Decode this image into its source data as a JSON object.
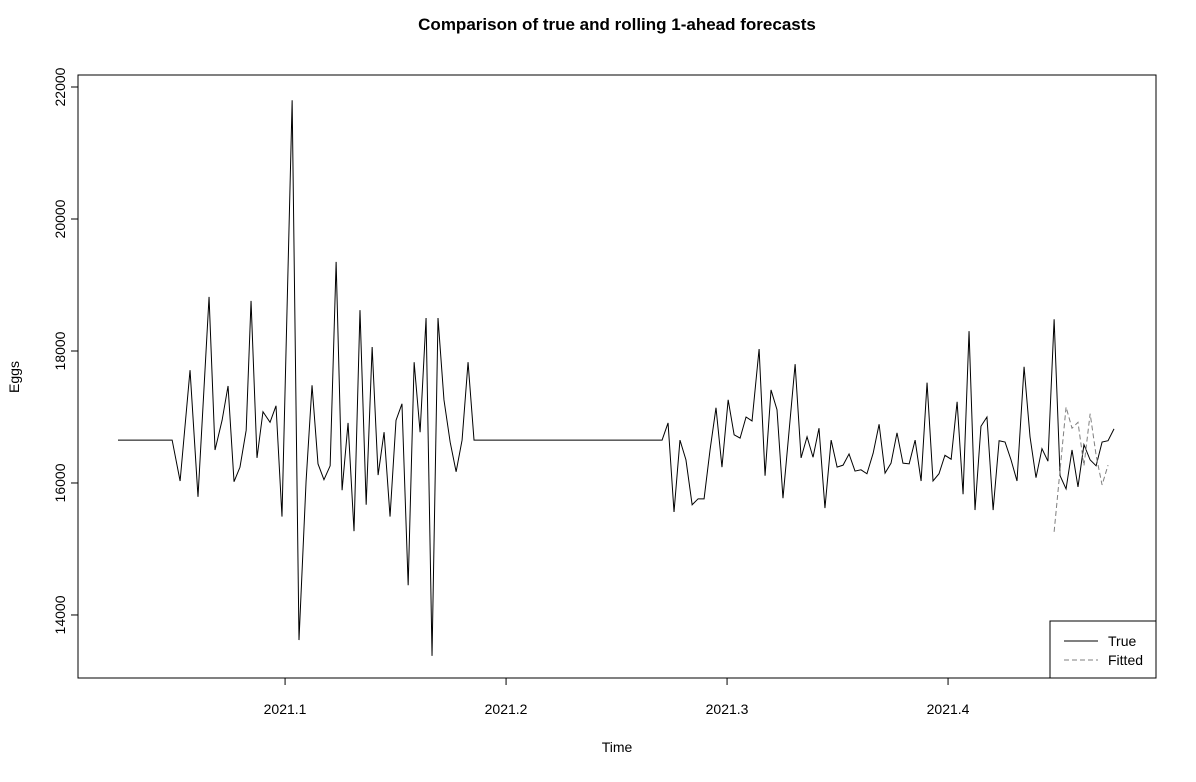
{
  "chart_data": {
    "type": "line",
    "title": "Comparison of true and rolling 1-ahead forecasts",
    "x_label": "Time",
    "y_label": "Eggs",
    "xlim": [
      2021.0063,
      2021.4941
    ],
    "ylim": [
      13045,
      22182
    ],
    "xticks": [
      2021.1,
      2021.2,
      2021.3,
      2021.4
    ],
    "yticks": [
      14000,
      16000,
      18000,
      20000,
      22000
    ],
    "legend_position": "bottomright",
    "series": [
      {
        "name": "True",
        "color": "#000000",
        "linestyle": "solid",
        "x": [
          2021.0244,
          2021.0489,
          2021.0525,
          2021.057,
          2021.0606,
          2021.0656,
          2021.0683,
          2021.0715,
          2021.0742,
          2021.0769,
          2021.0796,
          2021.0824,
          2021.0846,
          2021.0873,
          2021.09,
          2021.0932,
          2021.0959,
          2021.0986,
          2021.1032,
          2021.1063,
          2021.1095,
          2021.1122,
          2021.1149,
          2021.1176,
          2021.1204,
          2021.1231,
          2021.1258,
          2021.1285,
          2021.1312,
          2021.1339,
          2021.1367,
          2021.1394,
          2021.1421,
          2021.1448,
          2021.1475,
          2021.1502,
          2021.1529,
          2021.1557,
          2021.1584,
          2021.1611,
          2021.1638,
          2021.1665,
          2021.1692,
          2021.1719,
          2021.1747,
          2021.1774,
          2021.1801,
          2021.1828,
          2021.1855,
          2021.2706,
          2021.2733,
          2021.276,
          2021.2787,
          2021.2814,
          2021.2842,
          2021.2869,
          2021.2896,
          2021.2923,
          2021.295,
          2021.2977,
          2021.3005,
          2021.3032,
          2021.3059,
          2021.3086,
          2021.3113,
          2021.3145,
          2021.3172,
          2021.3199,
          2021.3226,
          2021.3253,
          2021.3281,
          2021.3308,
          2021.3335,
          2021.3362,
          2021.3389,
          2021.3416,
          2021.3443,
          2021.3471,
          2021.3498,
          2021.3525,
          2021.3552,
          2021.3579,
          2021.3606,
          2021.3633,
          2021.3661,
          2021.3688,
          2021.3715,
          2021.3742,
          2021.3769,
          2021.3796,
          2021.3824,
          2021.3851,
          2021.3878,
          2021.3905,
          2021.3932,
          2021.3959,
          2021.3986,
          2021.4014,
          2021.4041,
          2021.4068,
          2021.4095,
          2021.4122,
          2021.4149,
          2021.4176,
          2021.4204,
          2021.4231,
          2021.4258,
          2021.4285,
          2021.4312,
          2021.4344,
          2021.4371,
          2021.4398,
          2021.4425,
          2021.4452,
          2021.448,
          2021.4507,
          2021.4534,
          2021.4561,
          2021.4588,
          2021.4615,
          2021.4643,
          2021.467,
          2021.4697,
          2021.4724,
          2021.4751
        ],
        "values": [
          16650,
          16650,
          16030,
          17710,
          15790,
          18820,
          16500,
          16950,
          17470,
          16020,
          16240,
          16800,
          18760,
          16380,
          17080,
          16920,
          17170,
          15490,
          21800,
          13620,
          16020,
          17480,
          16290,
          16050,
          16260,
          19350,
          15890,
          16910,
          15270,
          18620,
          15670,
          18060,
          16120,
          16770,
          15490,
          16950,
          17200,
          14450,
          17830,
          16770,
          18500,
          13380,
          18500,
          17260,
          16620,
          16170,
          16650,
          17830,
          16650,
          16650,
          16910,
          15560,
          16650,
          16350,
          15670,
          15760,
          15760,
          16500,
          17140,
          16240,
          17260,
          16730,
          16680,
          17000,
          16940,
          18030,
          16110,
          17410,
          17110,
          15770,
          16800,
          17800,
          16380,
          16700,
          16390,
          16830,
          15620,
          16650,
          16240,
          16270,
          16440,
          16180,
          16200,
          16140,
          16450,
          16890,
          16150,
          16300,
          16760,
          16300,
          16290,
          16650,
          16030,
          17520,
          16030,
          16140,
          16420,
          16360,
          17230,
          15830,
          18300,
          15590,
          16860,
          17000,
          15590,
          16640,
          16620,
          16350,
          16030,
          17760,
          16700,
          16080,
          16520,
          16330,
          18480,
          16110,
          15910,
          16500,
          15940,
          16580,
          16350,
          16260,
          16620,
          16640,
          16820
        ]
      },
      {
        "name": "Fitted",
        "color": "#7f7f7f",
        "linestyle": "dashed",
        "x": [
          2021.448,
          2021.4507,
          2021.4534,
          2021.4561,
          2021.4588,
          2021.4615,
          2021.4643,
          2021.467,
          2021.4697,
          2021.4724
        ],
        "values": [
          15260,
          16200,
          17150,
          16830,
          16920,
          16260,
          17050,
          16420,
          15970,
          16270
        ]
      }
    ]
  }
}
